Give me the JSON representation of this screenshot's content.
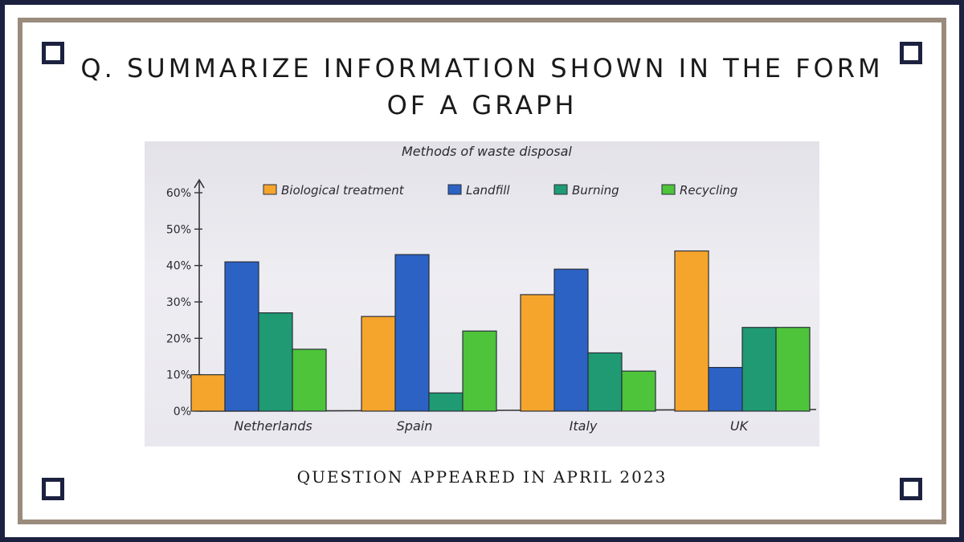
{
  "heading": "Q. SUMMARIZE INFORMATION SHOWN IN THE FORM OF A GRAPH",
  "caption": "QUESTION APPEARED IN APRIL 2023",
  "colors": {
    "frame_navy": "#1c2140",
    "frame_tan": "#9a8b7c",
    "bar_outline": "#2a2f3a"
  },
  "chart_data": {
    "type": "bar",
    "title": "Methods of waste disposal",
    "categories": [
      "Netherlands",
      "Spain",
      "Italy",
      "UK"
    ],
    "series": [
      {
        "name": "Biological treatment",
        "color": "#f6a52c",
        "values": [
          10,
          26,
          32,
          44
        ]
      },
      {
        "name": "Landfill",
        "color": "#2b62c4",
        "values": [
          41,
          43,
          39,
          12
        ]
      },
      {
        "name": "Burning",
        "color": "#1f9a72",
        "values": [
          27,
          5,
          16,
          23
        ]
      },
      {
        "name": "Recycling",
        "color": "#4dc43a",
        "values": [
          17,
          22,
          11,
          23
        ]
      }
    ],
    "y_ticks": [
      "0%",
      "10%",
      "20%",
      "30%",
      "40%",
      "50%",
      "60%"
    ],
    "ylim": [
      0,
      60
    ],
    "legend_position": "top",
    "grid": false
  }
}
